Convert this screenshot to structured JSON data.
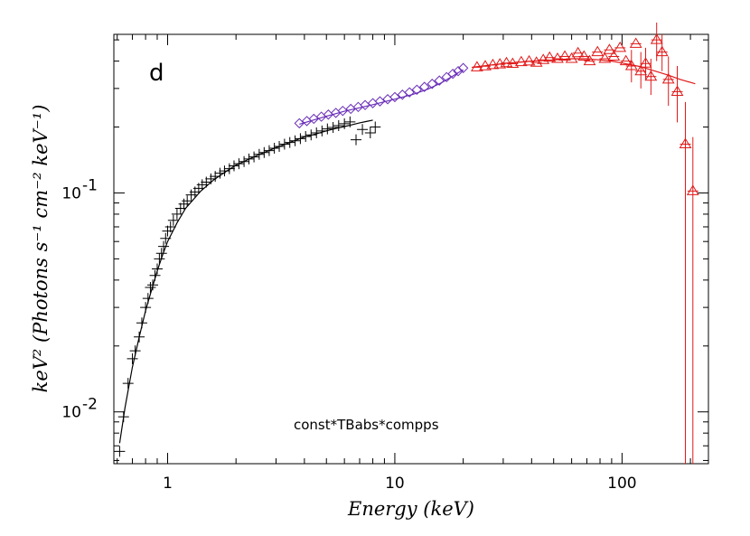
{
  "chart_data": {
    "type": "scatter",
    "title": "",
    "panel_label": "d",
    "annotation": "const*TBabs*compps",
    "xlabel": "Energy (keV)",
    "ylabel": "keV² (Photons s⁻¹ cm⁻² keV⁻¹)",
    "xscale": "log",
    "yscale": "log",
    "xlim": [
      0.58,
      240
    ],
    "ylim": [
      0.0058,
      0.53
    ],
    "x_ticks": [
      {
        "value": 1,
        "label": "1"
      },
      {
        "value": 10,
        "label": "10"
      },
      {
        "value": 100,
        "label": "100"
      }
    ],
    "y_ticks": [
      {
        "value": 0.01,
        "label": "10",
        "exp": "-2"
      },
      {
        "value": 0.1,
        "label": "10",
        "exp": "-1"
      }
    ],
    "grid": false,
    "legend": "none",
    "series": [
      {
        "marker": "cross",
        "color": "#000000",
        "points": [
          [
            0.615,
            0.0066
          ],
          [
            0.64,
            0.0095
          ],
          [
            0.67,
            0.0135
          ],
          [
            0.7,
            0.0175
          ],
          [
            0.72,
            0.019
          ],
          [
            0.75,
            0.022
          ],
          [
            0.77,
            0.0255
          ],
          [
            0.8,
            0.03
          ],
          [
            0.82,
            0.033
          ],
          [
            0.84,
            0.037
          ],
          [
            0.86,
            0.038
          ],
          [
            0.88,
            0.042
          ],
          [
            0.9,
            0.045
          ],
          [
            0.92,
            0.05
          ],
          [
            0.94,
            0.053
          ],
          [
            0.96,
            0.057
          ],
          [
            0.98,
            0.062
          ],
          [
            1.0,
            0.067
          ],
          [
            1.03,
            0.07
          ],
          [
            1.06,
            0.075
          ],
          [
            1.1,
            0.08
          ],
          [
            1.14,
            0.085
          ],
          [
            1.18,
            0.089
          ],
          [
            1.22,
            0.092
          ],
          [
            1.27,
            0.098
          ],
          [
            1.32,
            0.101
          ],
          [
            1.37,
            0.105
          ],
          [
            1.42,
            0.109
          ],
          [
            1.48,
            0.112
          ],
          [
            1.55,
            0.116
          ],
          [
            1.62,
            0.119
          ],
          [
            1.7,
            0.123
          ],
          [
            1.78,
            0.126
          ],
          [
            1.87,
            0.129
          ],
          [
            1.96,
            0.133
          ],
          [
            2.06,
            0.136
          ],
          [
            2.17,
            0.139
          ],
          [
            2.28,
            0.143
          ],
          [
            2.4,
            0.146
          ],
          [
            2.53,
            0.15
          ],
          [
            2.66,
            0.153
          ],
          [
            2.8,
            0.156
          ],
          [
            2.95,
            0.16
          ],
          [
            3.1,
            0.163
          ],
          [
            3.27,
            0.167
          ],
          [
            3.45,
            0.17
          ],
          [
            3.64,
            0.173
          ],
          [
            3.84,
            0.177
          ],
          [
            4.05,
            0.181
          ],
          [
            4.28,
            0.184
          ],
          [
            4.52,
            0.188
          ],
          [
            4.78,
            0.192
          ],
          [
            5.05,
            0.196
          ],
          [
            5.35,
            0.199
          ],
          [
            5.66,
            0.203
          ],
          [
            6.0,
            0.207
          ],
          [
            6.35,
            0.211
          ],
          [
            6.75,
            0.175
          ],
          [
            7.2,
            0.195
          ],
          [
            7.8,
            0.188
          ],
          [
            8.2,
            0.2
          ]
        ]
      },
      {
        "marker": "diamond",
        "color": "#6a2fb8",
        "points": [
          [
            3.8,
            0.208
          ],
          [
            4.1,
            0.213
          ],
          [
            4.4,
            0.218
          ],
          [
            4.75,
            0.223
          ],
          [
            5.1,
            0.228
          ],
          [
            5.5,
            0.232
          ],
          [
            5.9,
            0.237
          ],
          [
            6.4,
            0.242
          ],
          [
            6.9,
            0.247
          ],
          [
            7.4,
            0.252
          ],
          [
            8.0,
            0.257
          ],
          [
            8.6,
            0.262
          ],
          [
            9.3,
            0.268
          ],
          [
            10.0,
            0.274
          ],
          [
            10.8,
            0.281
          ],
          [
            11.6,
            0.288
          ],
          [
            12.5,
            0.296
          ],
          [
            13.5,
            0.305
          ],
          [
            14.6,
            0.315
          ],
          [
            15.7,
            0.326
          ],
          [
            16.9,
            0.338
          ],
          [
            18.0,
            0.35
          ],
          [
            19.0,
            0.36
          ],
          [
            20.0,
            0.372
          ]
        ]
      },
      {
        "marker": "triangle",
        "color": "#e01818",
        "points": [
          [
            23,
            0.375
          ],
          [
            25,
            0.379
          ],
          [
            27,
            0.384
          ],
          [
            29,
            0.387
          ],
          [
            31,
            0.392
          ],
          [
            33,
            0.389
          ],
          [
            36,
            0.396
          ],
          [
            39,
            0.399
          ],
          [
            42,
            0.394
          ],
          [
            45,
            0.405
          ],
          [
            48,
            0.415
          ],
          [
            52,
            0.41
          ],
          [
            56,
            0.42
          ],
          [
            60,
            0.41
          ],
          [
            64,
            0.435
          ],
          [
            68,
            0.42
          ],
          [
            72,
            0.4
          ],
          [
            78,
            0.44
          ],
          [
            84,
            0.41
          ],
          [
            88,
            0.45
          ],
          [
            92,
            0.42
          ],
          [
            98,
            0.46
          ],
          [
            104,
            0.4
          ],
          [
            110,
            0.38
          ],
          [
            115,
            0.48
          ],
          [
            121,
            0.36
          ],
          [
            127,
            0.39
          ],
          [
            134,
            0.34
          ],
          [
            142,
            0.5
          ],
          [
            150,
            0.44
          ],
          [
            160,
            0.33
          ],
          [
            175,
            0.29
          ],
          [
            190,
            0.167
          ],
          [
            205,
            0.102
          ]
        ],
        "error_bars": [
          [
            110,
            0.32,
            0.45
          ],
          [
            121,
            0.3,
            0.44
          ],
          [
            127,
            0.33,
            0.46
          ],
          [
            134,
            0.28,
            0.41
          ],
          [
            142,
            0.4,
            0.6
          ],
          [
            150,
            0.36,
            0.53
          ],
          [
            160,
            0.25,
            0.42
          ],
          [
            175,
            0.21,
            0.38
          ],
          [
            190,
            0.0058,
            0.26
          ],
          [
            205,
            0.0058,
            0.18
          ]
        ]
      }
    ],
    "model_curves": [
      {
        "color": "#000000",
        "points": [
          [
            0.615,
            0.0072
          ],
          [
            0.65,
            0.0105
          ],
          [
            0.7,
            0.016
          ],
          [
            0.75,
            0.022
          ],
          [
            0.8,
            0.029
          ],
          [
            0.85,
            0.036
          ],
          [
            0.9,
            0.044
          ],
          [
            0.95,
            0.052
          ],
          [
            1.0,
            0.06
          ],
          [
            1.1,
            0.073
          ],
          [
            1.2,
            0.085
          ],
          [
            1.4,
            0.102
          ],
          [
            1.6,
            0.115
          ],
          [
            1.8,
            0.125
          ],
          [
            2.0,
            0.134
          ],
          [
            2.5,
            0.149
          ],
          [
            3.0,
            0.161
          ],
          [
            3.5,
            0.171
          ],
          [
            4.0,
            0.18
          ],
          [
            4.5,
            0.186
          ],
          [
            5.0,
            0.192
          ],
          [
            5.5,
            0.197
          ],
          [
            6.0,
            0.201
          ],
          [
            6.5,
            0.205
          ],
          [
            7.0,
            0.209
          ],
          [
            7.5,
            0.212
          ],
          [
            8.0,
            0.215
          ]
        ]
      },
      {
        "color": "#6a2fb8",
        "points": [
          [
            3.8,
            0.206
          ],
          [
            5,
            0.224
          ],
          [
            6,
            0.236
          ],
          [
            7,
            0.245
          ],
          [
            8,
            0.253
          ],
          [
            10,
            0.268
          ],
          [
            12,
            0.282
          ],
          [
            14,
            0.298
          ],
          [
            16,
            0.318
          ],
          [
            18,
            0.342
          ],
          [
            20,
            0.365
          ]
        ]
      },
      {
        "color": "#e01818",
        "points": [
          [
            22,
            0.375
          ],
          [
            30,
            0.39
          ],
          [
            40,
            0.4
          ],
          [
            50,
            0.405
          ],
          [
            60,
            0.41
          ],
          [
            70,
            0.41
          ],
          [
            80,
            0.405
          ],
          [
            90,
            0.4
          ],
          [
            100,
            0.392
          ],
          [
            120,
            0.378
          ],
          [
            140,
            0.36
          ],
          [
            160,
            0.345
          ],
          [
            180,
            0.33
          ],
          [
            210,
            0.315
          ]
        ]
      }
    ]
  }
}
